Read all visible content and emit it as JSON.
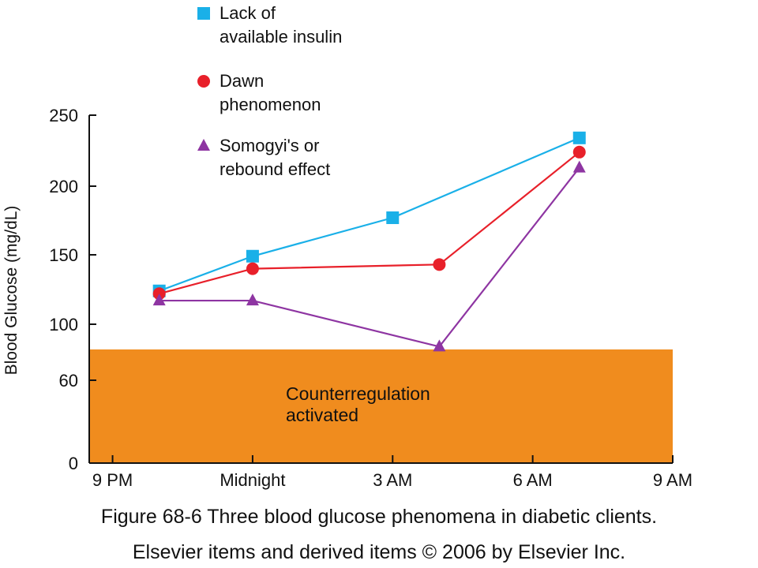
{
  "figure": {
    "caption": "Figure 68-6 Three blood glucose phenomena in diabetic clients.",
    "copyright": "Elsevier items and derived items © 2006 by Elsevier Inc."
  },
  "chart_data": {
    "type": "line",
    "title": "",
    "xlabel": "",
    "ylabel": "Blood Glucose (mg/dL)",
    "x_ticks": [
      "9 PM",
      "Midnight",
      "3 AM",
      "6 AM",
      "9 AM"
    ],
    "x_tick_hours": [
      21,
      24,
      27,
      30,
      33
    ],
    "xlim_hours": [
      20.5,
      33
    ],
    "y_ticks": [
      0,
      60,
      100,
      150,
      200,
      250
    ],
    "ylim": [
      0,
      250
    ],
    "grid": false,
    "legend_position": "top-center",
    "shaded_band": {
      "label_lines": [
        "Counterregulation",
        "activated"
      ],
      "y_from": 0,
      "y_to": 82,
      "color": "#f08c1e"
    },
    "series": [
      {
        "name": "Lack of available insulin",
        "legend_lines": [
          "Lack of",
          "available insulin"
        ],
        "color": "#1ab0e8",
        "marker": "square",
        "points": [
          [
            22,
            124
          ],
          [
            24,
            149
          ],
          [
            27,
            177
          ],
          [
            31,
            234
          ]
        ]
      },
      {
        "name": "Dawn phenomenon",
        "legend_lines": [
          "Dawn",
          "phenomenon"
        ],
        "color": "#e8202a",
        "marker": "circle",
        "points": [
          [
            22,
            122
          ],
          [
            24,
            140
          ],
          [
            28,
            143
          ],
          [
            31,
            224
          ]
        ]
      },
      {
        "name": "Somogyi's or rebound effect",
        "legend_lines": [
          "Somogyi's or",
          "rebound effect"
        ],
        "color": "#8e35a2",
        "marker": "triangle",
        "points": [
          [
            22,
            117
          ],
          [
            24,
            117
          ],
          [
            28,
            84
          ],
          [
            31,
            213
          ]
        ]
      }
    ]
  }
}
